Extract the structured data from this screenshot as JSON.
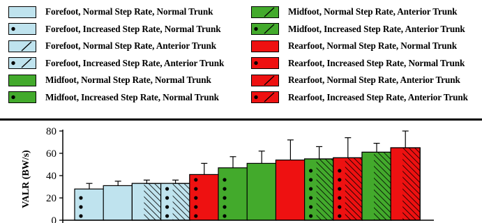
{
  "colors": {
    "forefoot": "#bfe3ee",
    "midfoot": "#43aa2c",
    "rearfoot": "#ee1111",
    "line": "#000000"
  },
  "legend": {
    "items": [
      {
        "label": "Forefoot, Normal Step Rate, Normal Trunk",
        "strike": "forefoot",
        "dots": false,
        "hatch": "none"
      },
      {
        "label": "Forefoot, Increased Step Rate, Normal Trunk",
        "strike": "forefoot",
        "dots": true,
        "hatch": "none"
      },
      {
        "label": "Forefoot, Normal Step Rate, Anterior Trunk",
        "strike": "forefoot",
        "dots": false,
        "hatch": "diagonal"
      },
      {
        "label": "Forefoot, Increased Step Rate, Anterior Trunk",
        "strike": "forefoot",
        "dots": true,
        "hatch": "diagonal"
      },
      {
        "label": "Midfoot, Normal Step Rate, Normal Trunk",
        "strike": "midfoot",
        "dots": false,
        "hatch": "none"
      },
      {
        "label": "Midfoot, Increased Step Rate, Normal Trunk",
        "strike": "midfoot",
        "dots": true,
        "hatch": "none"
      },
      {
        "label": "Midfoot, Normal Step Rate, Anterior Trunk",
        "strike": "midfoot",
        "dots": false,
        "hatch": "diagonal"
      },
      {
        "label": "Midfoot, Increased Step Rate, Anterior Trunk",
        "strike": "midfoot",
        "dots": true,
        "hatch": "diagonal"
      },
      {
        "label": "Rearfoot, Normal Step Rate, Normal Trunk",
        "strike": "rearfoot",
        "dots": false,
        "hatch": "none"
      },
      {
        "label": "Rearfoot, Increased Step Rate, Normal Trunk",
        "strike": "rearfoot",
        "dots": true,
        "hatch": "none"
      },
      {
        "label": "Rearfoot, Normal Step Rate, Anterior Trunk",
        "strike": "rearfoot",
        "dots": false,
        "hatch": "diagonal"
      },
      {
        "label": "Rearfoot, Increased Step Rate, Anterior Trunk",
        "strike": "rearfoot",
        "dots": true,
        "hatch": "diagonal"
      }
    ]
  },
  "chart_data": {
    "type": "bar",
    "title": "",
    "xlabel": "",
    "ylabel": "VALR (BW/s)",
    "ylim": [
      0,
      80
    ],
    "yticks": [
      0,
      20,
      40,
      60,
      80
    ],
    "grid": false,
    "legend_position": "top",
    "bars": [
      {
        "series": "Forefoot, Increased Step Rate, Normal Trunk",
        "strike": "forefoot",
        "dots": true,
        "hatch": "none",
        "value": 28,
        "error": 5
      },
      {
        "series": "Forefoot, Normal Step Rate, Normal Trunk",
        "strike": "forefoot",
        "dots": false,
        "hatch": "none",
        "value": 31,
        "error": 4
      },
      {
        "series": "Forefoot, Normal Step Rate, Anterior Trunk",
        "strike": "forefoot",
        "dots": false,
        "hatch": "diagonal",
        "value": 33,
        "error": 3
      },
      {
        "series": "Forefoot, Increased Step Rate, Anterior Trunk",
        "strike": "forefoot",
        "dots": true,
        "hatch": "diagonal",
        "value": 33,
        "error": 3
      },
      {
        "series": "Rearfoot, Increased Step Rate, Normal Trunk",
        "strike": "rearfoot",
        "dots": true,
        "hatch": "none",
        "value": 41,
        "error": 10
      },
      {
        "series": "Midfoot, Increased Step Rate, Normal Trunk",
        "strike": "midfoot",
        "dots": true,
        "hatch": "none",
        "value": 47,
        "error": 10
      },
      {
        "series": "Midfoot, Normal Step Rate, Normal Trunk",
        "strike": "midfoot",
        "dots": false,
        "hatch": "none",
        "value": 51,
        "error": 11
      },
      {
        "series": "Rearfoot, Normal Step Rate, Normal Trunk",
        "strike": "rearfoot",
        "dots": false,
        "hatch": "none",
        "value": 54,
        "error": 18
      },
      {
        "series": "Midfoot, Increased Step Rate, Anterior Trunk",
        "strike": "midfoot",
        "dots": true,
        "hatch": "diagonal",
        "value": 55,
        "error": 11
      },
      {
        "series": "Rearfoot, Increased Step Rate, Anterior Trunk",
        "strike": "rearfoot",
        "dots": true,
        "hatch": "diagonal",
        "value": 56,
        "error": 18
      },
      {
        "series": "Midfoot, Normal Step Rate, Anterior Trunk",
        "strike": "midfoot",
        "dots": false,
        "hatch": "diagonal",
        "value": 61,
        "error": 8
      },
      {
        "series": "Rearfoot, Normal Step Rate, Anterior Trunk",
        "strike": "rearfoot",
        "dots": false,
        "hatch": "diagonal",
        "value": 65,
        "error": 15
      }
    ]
  }
}
